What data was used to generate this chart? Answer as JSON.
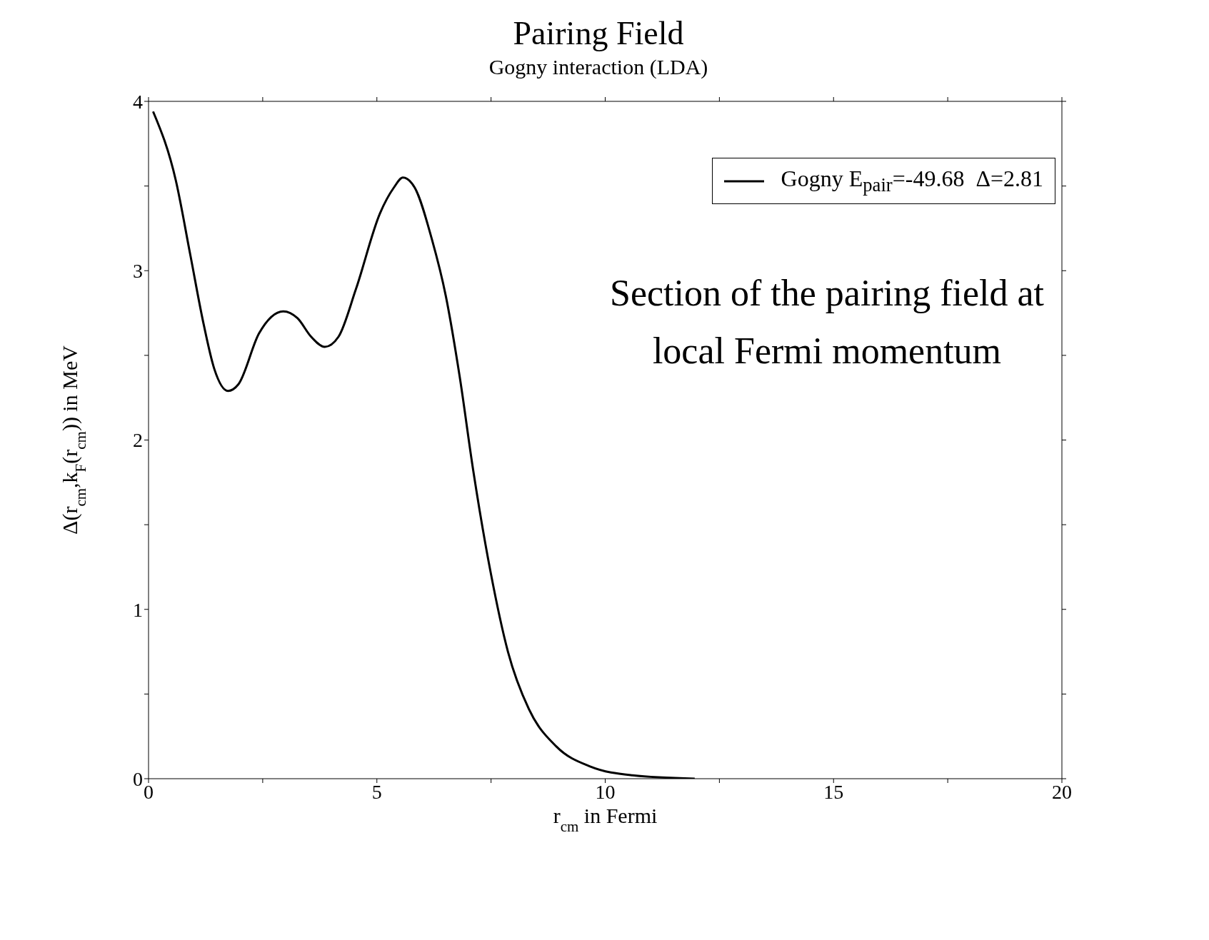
{
  "chart_data": {
    "type": "line",
    "title": "Pairing Field",
    "subtitle": "Gogny interaction (LDA)",
    "xlabel": "r$_{cm}$ in Fermi",
    "ylabel": "Δ(r$_{cm}$,k$_{F}$(r$_{cm}$)) in MeV",
    "x": [
      0.1,
      0.6,
      0.91,
      1.21,
      1.44,
      1.74,
      1.97,
      2.42,
      2.95,
      3.26,
      3.56,
      3.86,
      4.16,
      4.54,
      5.07,
      5.37,
      5.57,
      5.83,
      6.2,
      6.51,
      6.81,
      7.11,
      7.49,
      7.87,
      8.33,
      8.93,
      9.69,
      10.6,
      11.96
    ],
    "series": [
      {
        "name": "Gogny E$_{pair}$=-49.68  Δ=2.81",
        "color": "#000000",
        "values": [
          3.94,
          3.53,
          3.1,
          2.68,
          2.42,
          2.29,
          2.33,
          2.63,
          2.76,
          2.72,
          2.61,
          2.55,
          2.61,
          2.89,
          3.34,
          3.49,
          3.55,
          3.49,
          3.19,
          2.85,
          2.38,
          1.82,
          1.22,
          0.75,
          0.41,
          0.19,
          0.07,
          0.02,
          0.0
        ]
      }
    ],
    "xlim": [
      0,
      20
    ],
    "xticks": [
      0,
      {
        "value": 2.5,
        "label": null
      },
      5,
      {
        "value": 7.5,
        "label": null
      },
      10,
      {
        "value": 12.5,
        "label": null
      },
      15,
      {
        "value": 17.5,
        "label": null
      },
      20
    ],
    "ylim": [
      0,
      4
    ],
    "yticks": [
      0,
      {
        "value": 0.5,
        "label": null
      },
      1,
      {
        "value": 1.5,
        "label": null
      },
      2,
      {
        "value": 2.5,
        "label": null
      },
      3,
      {
        "value": 3.5,
        "label": null
      },
      4
    ],
    "legend": "top right",
    "marker": "none",
    "line_style": "solid",
    "annotations": [
      "Section of the pairing field at local Fermi momentum"
    ]
  }
}
